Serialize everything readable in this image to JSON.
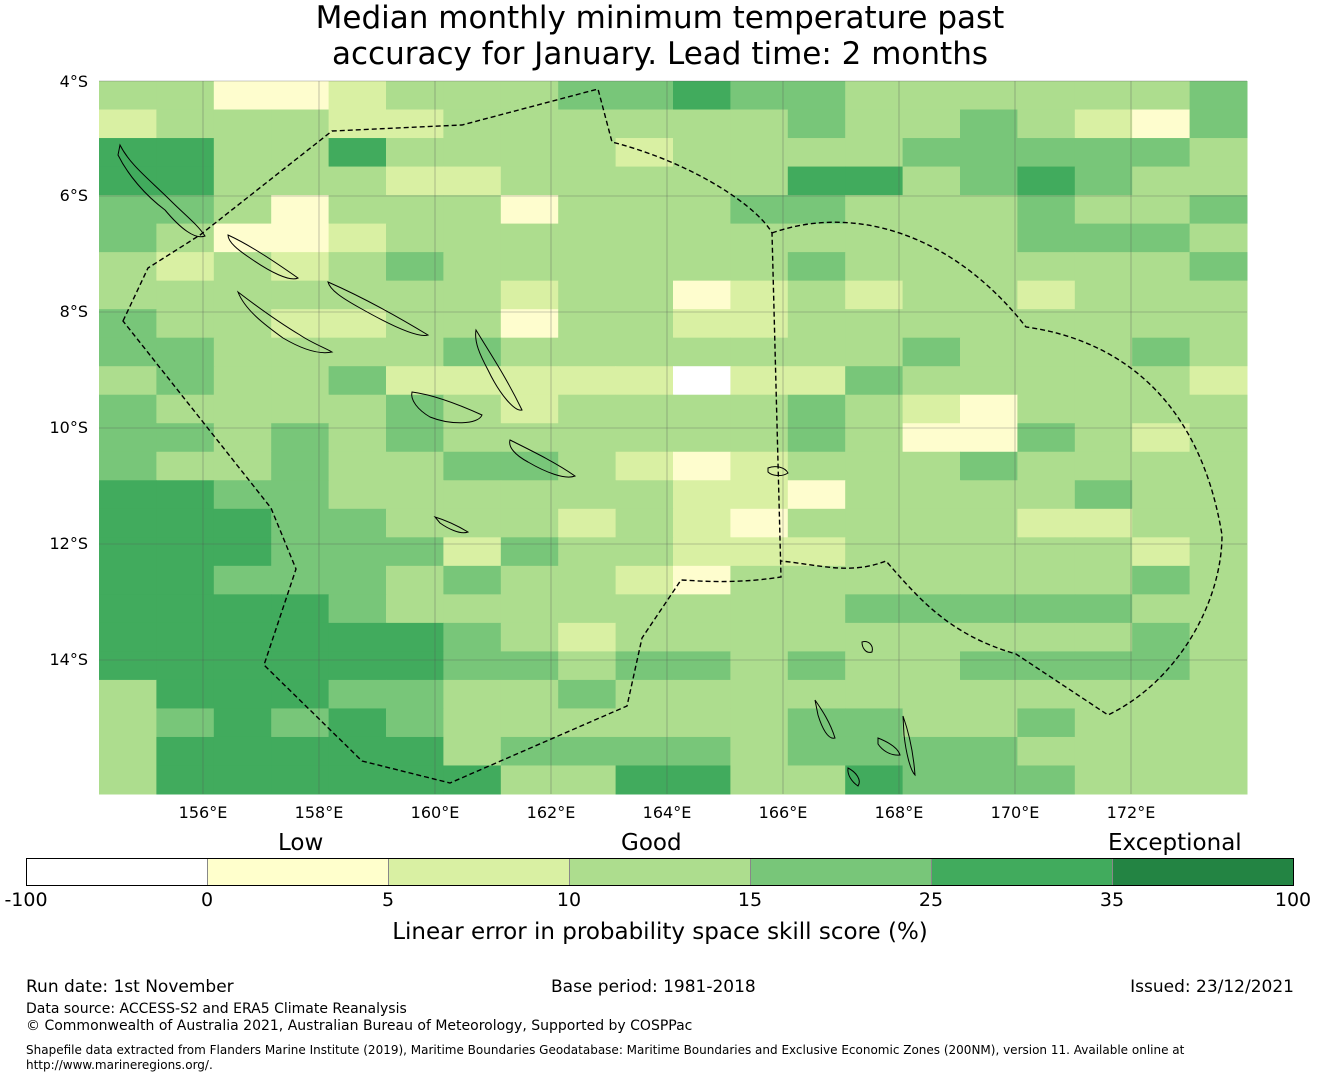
{
  "title": {
    "line1": "Median monthly minimum temperature past",
    "line2": "accuracy for January. Lead time: 2 months"
  },
  "map": {
    "lat_labels": [
      "4°S",
      "6°S",
      "8°S",
      "10°S",
      "12°S",
      "14°S"
    ],
    "lon_labels": [
      "156°E",
      "158°E",
      "160°E",
      "162°E",
      "164°E",
      "166°E",
      "168°E",
      "170°E",
      "172°E"
    ],
    "extent": {
      "lon_min": 154.2,
      "lon_max": 174.0,
      "lat_min": -16.3,
      "lat_max": -4.0
    },
    "cell_size_deg": 0.83,
    "grid_rows": [
      "33112333445443333334",
      "23332233333343343214",
      "55335333323333444443",
      "55333223333355345433",
      "44313331333443334334",
      "43112333333333334443",
      "32323433333343333334",
      "33333332331232332333",
      "43322331332233333333",
      "44333343333333433343",
      "34334222220224333332",
      "43333432333343213333",
      "44343433333343114323",
      "43343344321233343333",
      "55443333332213333433",
      "55544333232133332233",
      "55544424332223333323",
      "55444343321333333343",
      "55554333333334444433",
      "55555543233333333343",
      "55555544344343344443",
      "35554433433333333333",
      "34545433333344334333",
      "35555534444344443333",
      "35555553355335444333"
    ],
    "color_classes": [
      "#ffffff",
      "#fefdce",
      "#d9f0a3",
      "#addd8e",
      "#78c679",
      "#41ab5d",
      "#238443"
    ]
  },
  "legend": {
    "categories": [
      "Low",
      "Good",
      "Exceptional"
    ],
    "ticks": [
      "-100",
      "0",
      "5",
      "10",
      "15",
      "25",
      "35",
      "100"
    ],
    "colors": [
      "#ffffff",
      "#ffffcc",
      "#d9f0a3",
      "#addd8e",
      "#78c679",
      "#41ab5d",
      "#238443"
    ],
    "title": "Linear error in probability space skill score (%)"
  },
  "footer": {
    "run_date": "Run date: 1st November",
    "base_period": "Base period: 1981-2018",
    "issued": "Issued: 23/12/2021",
    "data_source": "Data source: ACCESS-S2 and ERA5 Climate Reanalysis",
    "copyright": "© Commonwealth of Australia 2021, Australian Bureau of Meteorology, Supported by COSPPac",
    "shapefile": "Shapefile data extracted from Flanders Marine Institute (2019), Maritime Boundaries Geodatabase: Maritime Boundaries and Exclusive Economic Zones (200NM), version 11. Available online at http://www.marineregions.org/."
  }
}
